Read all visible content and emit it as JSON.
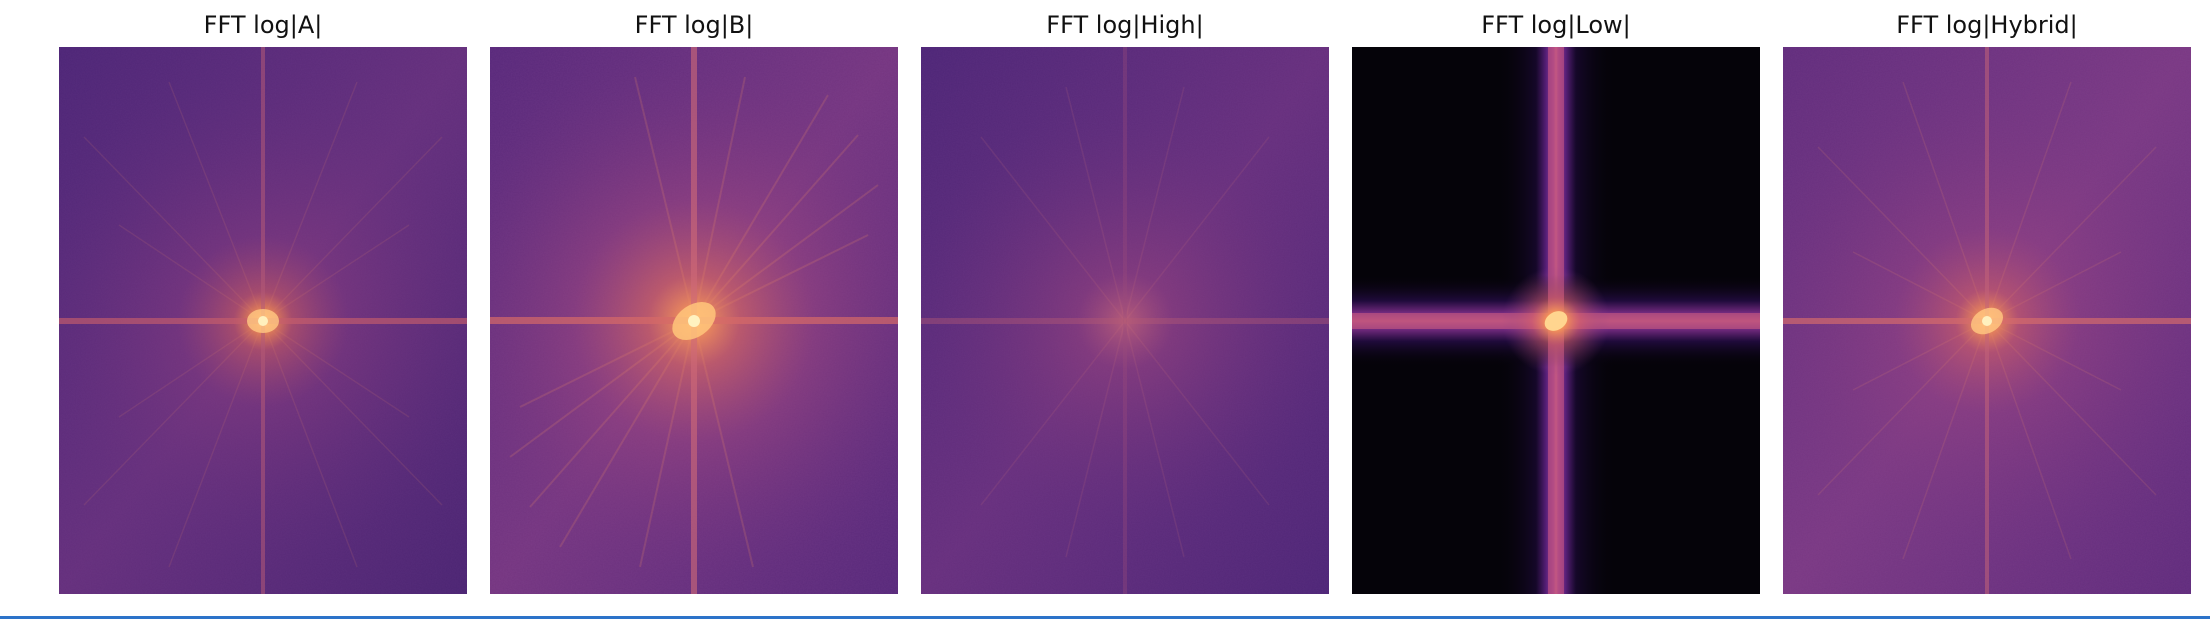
{
  "figure": {
    "panels": [
      {
        "id": "a",
        "title": "FFT log|A|"
      },
      {
        "id": "b",
        "title": "FFT log|B|"
      },
      {
        "id": "high",
        "title": "FFT log|High|"
      },
      {
        "id": "low",
        "title": "FFT log|Low|"
      },
      {
        "id": "hybrid",
        "title": "FFT log|Hybrid|"
      }
    ]
  },
  "colors": {
    "background": "#ffffff",
    "plasma_dark": "#050309",
    "plasma_purple": "#4a2471",
    "plasma_magenta": "#8d3f86",
    "plasma_orange": "#e37a55",
    "plasma_peak": "#ffd39a",
    "bottom_rule": "#2c73c9"
  }
}
